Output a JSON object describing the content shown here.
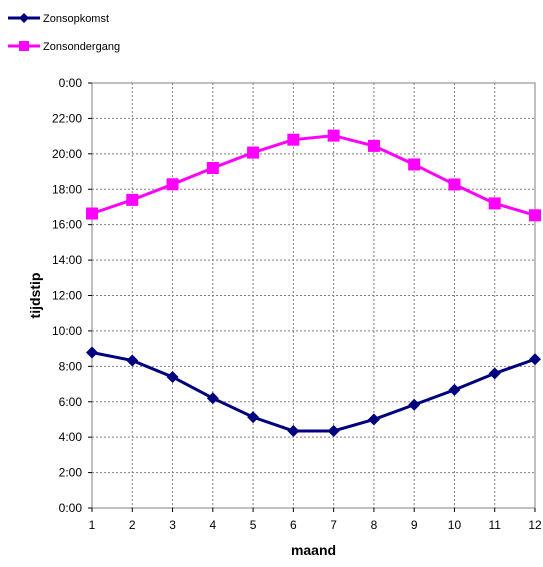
{
  "chart_data": {
    "type": "line",
    "xlabel": "maand",
    "ylabel": "tijdstip",
    "categories": [
      1,
      2,
      3,
      4,
      5,
      6,
      7,
      8,
      9,
      10,
      11,
      12
    ],
    "x_tick_labels": [
      "1",
      "2",
      "3",
      "4",
      "5",
      "6",
      "7",
      "8",
      "9",
      "10",
      "11",
      "12"
    ],
    "y_unit": "hours",
    "ylim": [
      0,
      24
    ],
    "y_ticks": [
      0,
      2,
      4,
      6,
      8,
      10,
      12,
      14,
      16,
      18,
      20,
      22,
      24
    ],
    "y_tick_labels": [
      "0:00",
      "2:00",
      "4:00",
      "6:00",
      "8:00",
      "10:00",
      "12:00",
      "14:00",
      "16:00",
      "18:00",
      "20:00",
      "22:00",
      "0:00"
    ],
    "grid": "on",
    "legend_position": "top-left",
    "series": [
      {
        "name": "Zonsopkomst",
        "color": "#00007f",
        "marker": "diamond",
        "values": [
          8.78,
          8.33,
          7.4,
          6.2,
          5.13,
          4.35,
          4.35,
          5.0,
          5.83,
          6.67,
          7.6,
          8.4
        ]
      },
      {
        "name": "Zonsondergang",
        "color": "#ff00ff",
        "marker": "square",
        "values": [
          16.63,
          17.4,
          18.28,
          19.2,
          20.07,
          20.8,
          21.03,
          20.45,
          19.4,
          18.27,
          17.2,
          16.53
        ]
      }
    ]
  }
}
